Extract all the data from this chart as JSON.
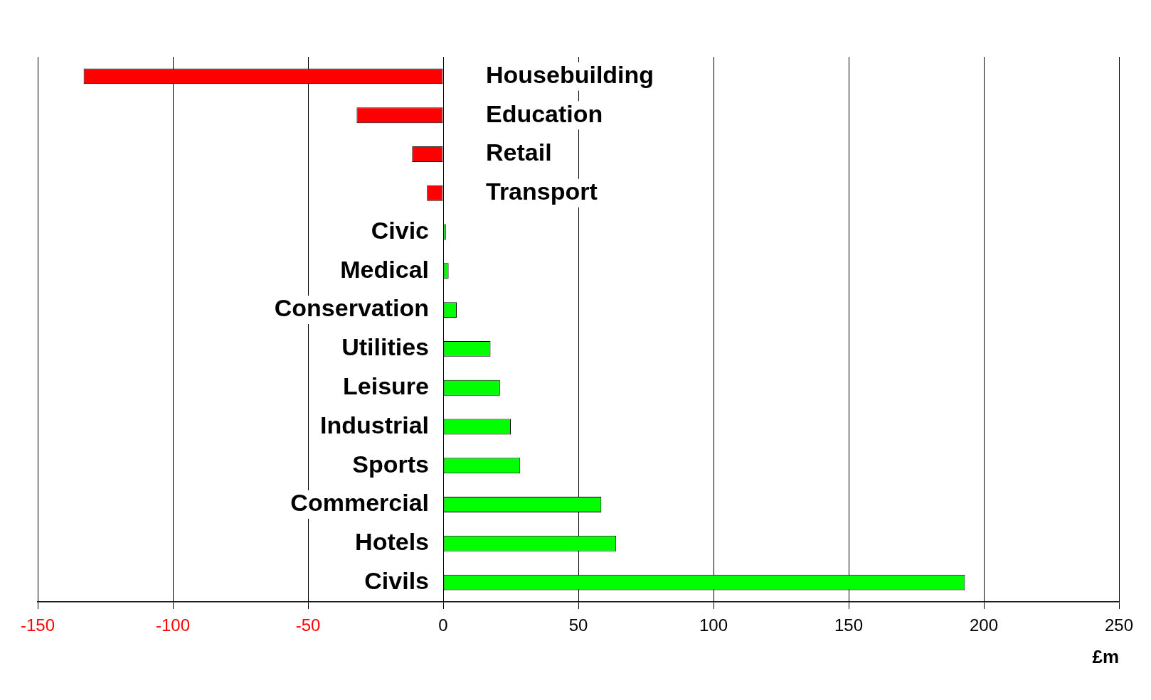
{
  "chart_data": {
    "type": "bar",
    "orientation": "horizontal",
    "categories": [
      "Housebuilding",
      "Education",
      "Retail",
      "Transport",
      "Civic",
      "Medical",
      "Conservation",
      "Utilities",
      "Leisure",
      "Industrial",
      "Sports",
      "Commercial",
      "Hotels",
      "Civils"
    ],
    "values": [
      -133,
      -32,
      -11.5,
      -6,
      1,
      2,
      5,
      17.5,
      21,
      25,
      28.5,
      58.5,
      64,
      193
    ],
    "colors": [
      "#ff0000",
      "#ff0000",
      "#ff0000",
      "#ff0000",
      "#00ff00",
      "#00ff00",
      "#00ff00",
      "#00ff00",
      "#00ff00",
      "#00ff00",
      "#00ff00",
      "#00ff00",
      "#00ff00",
      "#00ff00"
    ],
    "xlabel": "£m",
    "xlim": [
      -150,
      250
    ],
    "xticks": [
      -150,
      -100,
      -50,
      0,
      50,
      100,
      150,
      200,
      250
    ],
    "grid": "x",
    "legend": false,
    "tick_labels": "x"
  }
}
